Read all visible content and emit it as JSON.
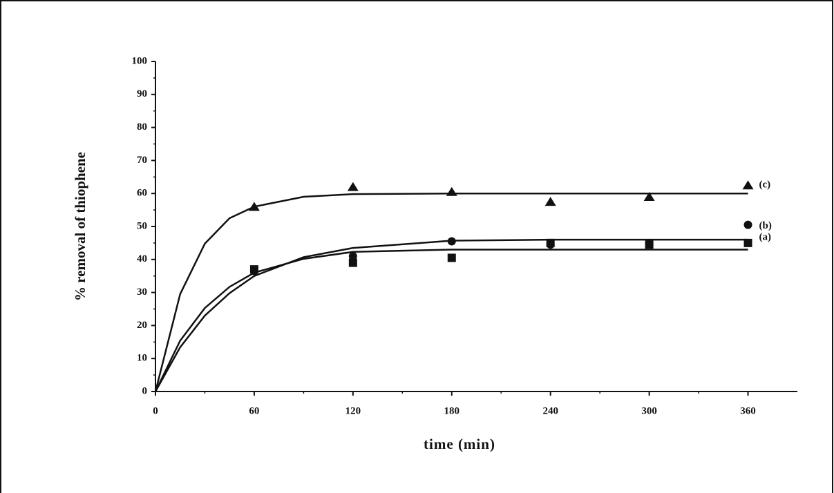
{
  "chart_data": {
    "type": "scatter",
    "x_label": "time (min)",
    "y_label": "% removal of thiophene",
    "x": [
      0,
      60,
      120,
      180,
      240,
      300,
      360
    ],
    "series": [
      {
        "name": "(a)",
        "marker": "square",
        "color": "#111111",
        "values": [
          0,
          37,
          39,
          40.5,
          45,
          44.5,
          45
        ]
      },
      {
        "name": "(b)",
        "marker": "circle",
        "color": "#111111",
        "values": [
          0,
          36.5,
          41,
          45.5,
          44.5,
          45,
          50.5
        ]
      },
      {
        "name": "(c)",
        "marker": "triangle",
        "color": "#111111",
        "values": [
          0,
          56,
          62,
          60.5,
          57.5,
          59,
          62.5
        ]
      }
    ],
    "fits": {
      "x": [
        0,
        15,
        30,
        45,
        60,
        90,
        120,
        180,
        240,
        300,
        360
      ],
      "series": [
        {
          "color": "#111111",
          "values": [
            0,
            15.4,
            25.3,
            31.7,
            36,
            40.2,
            42.3,
            43,
            43,
            43,
            43
          ]
        },
        {
          "color": "#111111",
          "values": [
            0,
            13.4,
            23,
            29.8,
            35,
            40.7,
            43.5,
            45.7,
            46,
            46,
            46
          ]
        },
        {
          "color": "#111111",
          "values": [
            0,
            29.5,
            44.8,
            52.5,
            56,
            59,
            59.8,
            60,
            60,
            60,
            60
          ]
        }
      ]
    },
    "xlim": [
      0,
      390
    ],
    "xticks": [
      0,
      60,
      120,
      180,
      240,
      300,
      360
    ],
    "ylim": [
      0,
      100
    ],
    "yticks": [
      0,
      10,
      20,
      30,
      40,
      50,
      60,
      70,
      80,
      90,
      100
    ]
  }
}
